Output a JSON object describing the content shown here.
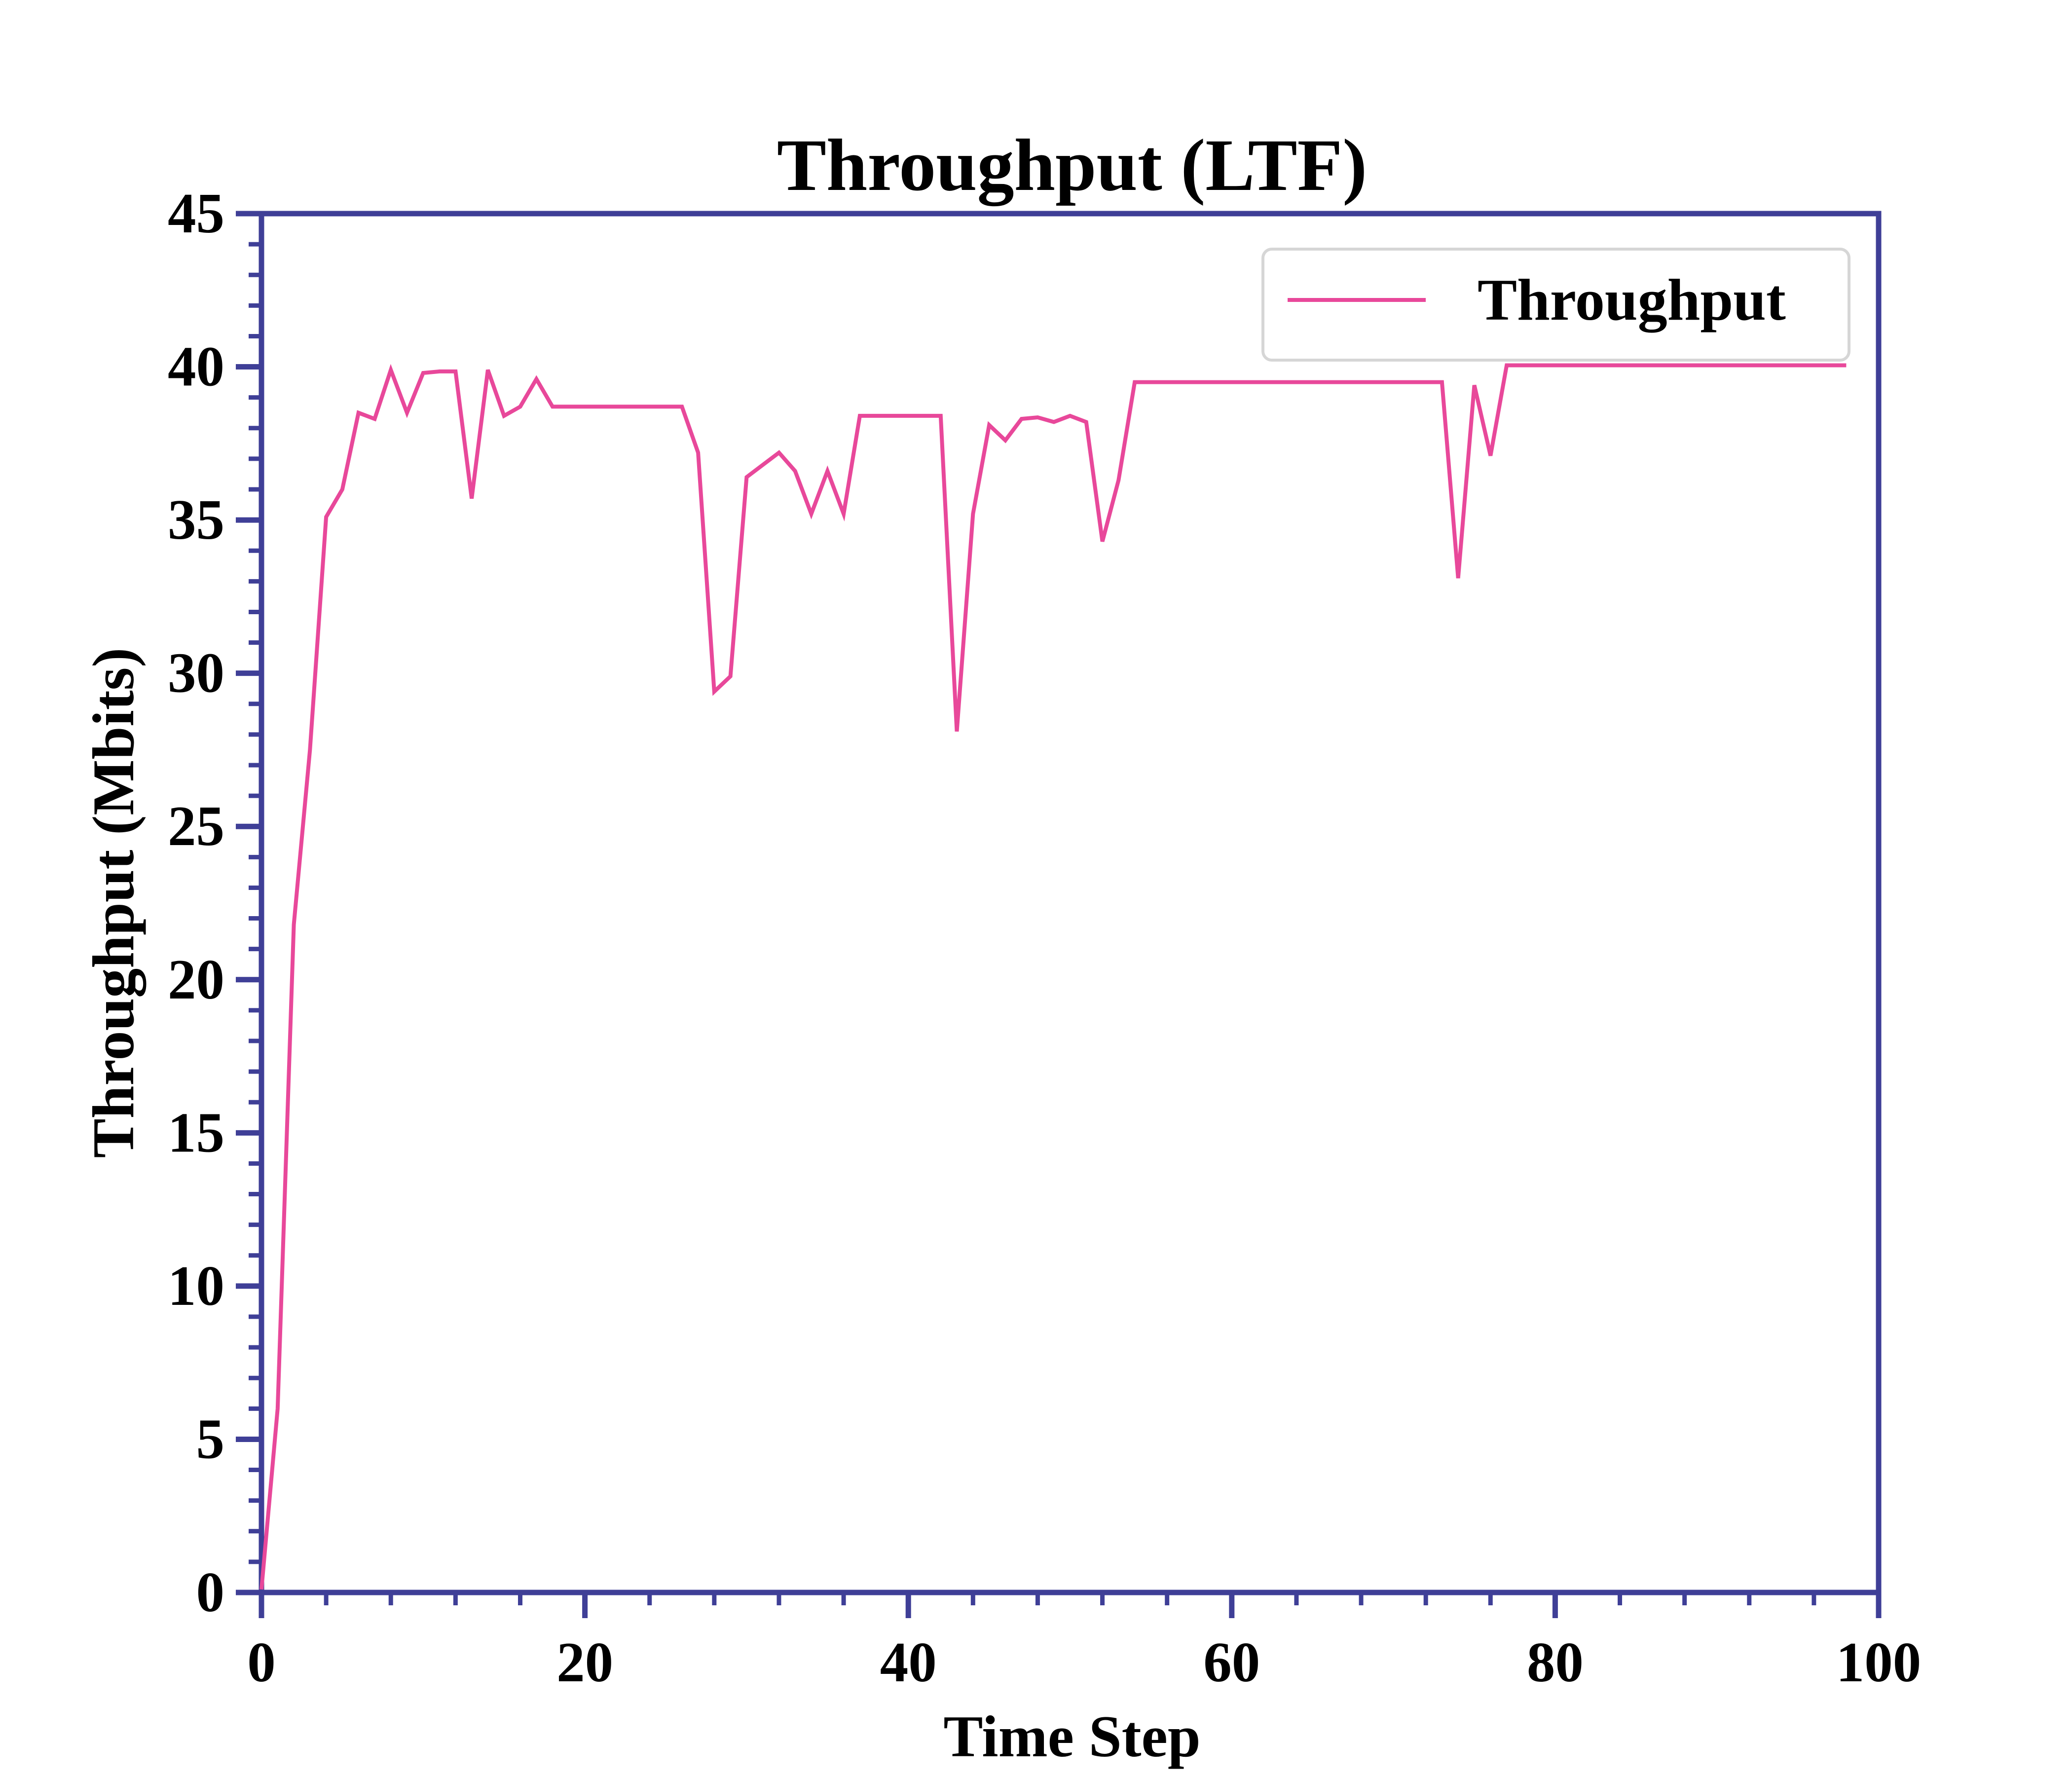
{
  "chart_data": {
    "type": "line",
    "title": "Throughput (LTF)",
    "xlabel": "Time Step",
    "ylabel": "Throughput (Mbits)",
    "xlim": [
      0,
      100
    ],
    "ylim": [
      0,
      45
    ],
    "xticks": [
      0,
      20,
      40,
      60,
      80,
      100
    ],
    "yticks": [
      0,
      5,
      10,
      15,
      20,
      25,
      30,
      35,
      40,
      45
    ],
    "grid": false,
    "legend_position": "top-right",
    "axis_color": "#3f3f97",
    "series": [
      {
        "name": "Throughput",
        "color": "#e8489a",
        "x": [
          0,
          1,
          2,
          3,
          4,
          5,
          6,
          7,
          8,
          9,
          10,
          11,
          12,
          13,
          14,
          15,
          16,
          17,
          18,
          19,
          20,
          21,
          22,
          23,
          24,
          25,
          26,
          27,
          28,
          29,
          30,
          31,
          32,
          33,
          34,
          35,
          36,
          37,
          38,
          39,
          40,
          41,
          42,
          43,
          44,
          45,
          46,
          47,
          48,
          49,
          50,
          51,
          52,
          53,
          54,
          55,
          56,
          57,
          58,
          59,
          60,
          61,
          62,
          63,
          64,
          65,
          66,
          67,
          68,
          69,
          70,
          71,
          72,
          73,
          74,
          75,
          76,
          77,
          78,
          79,
          80,
          81,
          82,
          83,
          84,
          85,
          86,
          87,
          88,
          89,
          90,
          91,
          92,
          93,
          94,
          95,
          96,
          97,
          98
        ],
        "values": [
          0.1,
          6.0,
          21.8,
          27.5,
          35.1,
          36.0,
          38.5,
          38.3,
          39.9,
          38.5,
          39.8,
          39.85,
          39.85,
          35.7,
          39.9,
          38.4,
          38.7,
          39.6,
          38.7,
          38.7,
          38.7,
          38.7,
          38.7,
          38.7,
          38.7,
          38.7,
          38.7,
          37.2,
          29.4,
          29.9,
          36.4,
          36.8,
          37.2,
          36.6,
          35.2,
          36.6,
          35.2,
          38.4,
          38.4,
          38.4,
          38.4,
          38.4,
          38.4,
          28.1,
          35.2,
          38.1,
          37.6,
          38.3,
          38.35,
          38.2,
          38.4,
          38.2,
          34.3,
          36.3,
          39.5,
          39.5,
          39.5,
          39.5,
          39.5,
          39.5,
          39.5,
          39.5,
          39.5,
          39.5,
          39.5,
          39.5,
          39.5,
          39.5,
          39.5,
          39.5,
          39.5,
          39.5,
          39.5,
          39.5,
          33.1,
          39.4,
          37.1,
          40.05,
          40.05,
          40.05,
          40.05,
          40.05,
          40.05,
          40.05,
          40.05,
          40.05,
          40.05,
          40.05,
          40.05,
          40.05,
          40.05,
          40.05,
          40.05,
          40.05,
          40.05,
          40.05,
          40.05,
          40.05,
          40.05
        ]
      }
    ]
  }
}
